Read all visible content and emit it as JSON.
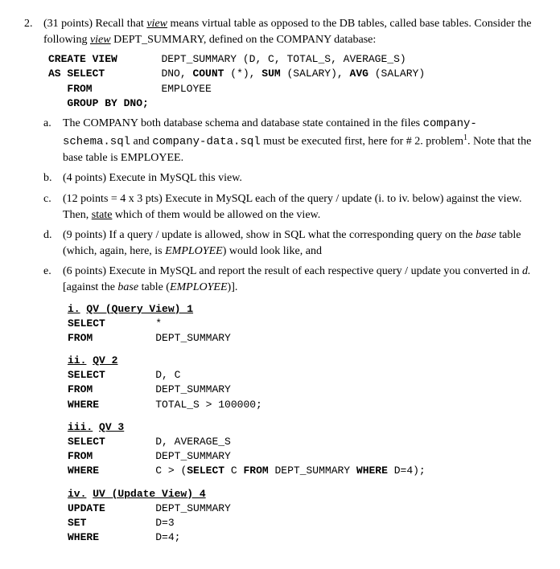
{
  "question": {
    "number": "2.",
    "points": "(31 points) Recall that ",
    "view_word": "view",
    "intro1": " means virtual table as opposed to the DB tables, called base tables. Consider the following ",
    "view_word2": "view",
    "intro2": " DEPT_SUMMARY, defined on the COMPANY database:"
  },
  "sql_view": {
    "l1a": "CREATE VIEW",
    "l1b": "DEPT_SUMMARY (D, C, TOTAL_S, AVERAGE_S)",
    "l2a": "AS SELECT",
    "l2b": "DNO, ",
    "l2c": "COUNT",
    "l2d": " (*), ",
    "l2e": "SUM",
    "l2f": " (SALARY), ",
    "l2g": "AVG",
    "l2h": " (SALARY)",
    "l3a": "   FROM",
    "l3b": "EMPLOYEE",
    "l4": "   GROUP BY DNO;"
  },
  "parts": {
    "a": {
      "letter": "a.",
      "text1": "The COMPANY both database schema and database state contained in the files ",
      "file1": "company-schema.sql",
      "text2": " and ",
      "file2": "company-data.sql",
      "text3": " must be executed first, here for # 2. problem",
      "sup": "1",
      "text4": ". Note that the base table is EMPLOYEE."
    },
    "b": {
      "letter": "b.",
      "text": "(4 points) Execute in MySQL this view."
    },
    "c": {
      "letter": "c.",
      "text1": "(12 points = 4 x 3 pts) Execute in MySQL each of the query / update (i. to iv. below) against the view. Then, ",
      "state": "state",
      "text2": " which of them would be allowed on the view."
    },
    "d": {
      "letter": "d.",
      "text1": "(9 points) If a query / update is allowed, show in SQL what the corresponding query on the ",
      "base": "base",
      "text2": " table (which, again, here, is ",
      "emp": "EMPLOYEE",
      "text3": ") would look like, and"
    },
    "e": {
      "letter": "e.",
      "text1": "(6 points) Execute in MySQL and report the result of each respective query / update you converted in ",
      "d": "d.",
      "text2": " [against the ",
      "base": "base",
      "text3": " table (",
      "emp": "EMPLOYEE",
      "text4": ")]."
    }
  },
  "queries": {
    "q1": {
      "num": "i.",
      "title": "QV (Query View) 1",
      "select": "SELECT",
      "select_v": "*",
      "from": "FROM",
      "from_v": "DEPT_SUMMARY"
    },
    "q2": {
      "num": "ii.",
      "title": "QV 2",
      "select": "SELECT",
      "select_v": "D, C",
      "from": "FROM",
      "from_v": "DEPT_SUMMARY",
      "where": "WHERE",
      "where_v": "TOTAL_S > 100000;"
    },
    "q3": {
      "num": "iii.",
      "title": "QV 3",
      "select": "SELECT",
      "select_v": "D, AVERAGE_S",
      "from": "FROM",
      "from_v": "DEPT_SUMMARY",
      "where": "WHERE",
      "where_v1": "C > (",
      "where_sel": "SELECT",
      "where_v2": " C ",
      "where_frm": "FROM",
      "where_v3": " DEPT_SUMMARY ",
      "where_whr": "WHERE",
      "where_v4": " D=4);"
    },
    "q4": {
      "num": "iv.",
      "title": "UV (Update View) 4",
      "update": "UPDATE",
      "update_v": "DEPT_SUMMARY",
      "set": "SET",
      "set_v": "D=3",
      "where": "WHERE",
      "where_v": "D=4;"
    }
  }
}
